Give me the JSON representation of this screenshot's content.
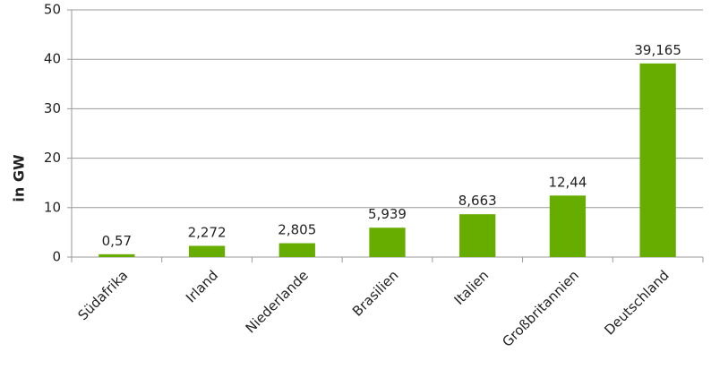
{
  "chart_data": {
    "type": "bar",
    "y_label": "in GW",
    "categories": [
      "Südafrika",
      "Irland",
      "Niederlande",
      "Brasilien",
      "Italien",
      "Großbritannien",
      "Deutschland"
    ],
    "values": [
      0.57,
      2.272,
      2.805,
      5.939,
      8.663,
      12.44,
      39.165
    ],
    "value_labels": [
      "0,57",
      "2,272",
      "2,805",
      "5,939",
      "8,663",
      "12,44",
      "39,165"
    ],
    "color": "#66ad00",
    "ylim": [
      0,
      50
    ],
    "yticks": [
      0,
      10,
      20,
      30,
      40,
      50
    ],
    "grid": true
  }
}
